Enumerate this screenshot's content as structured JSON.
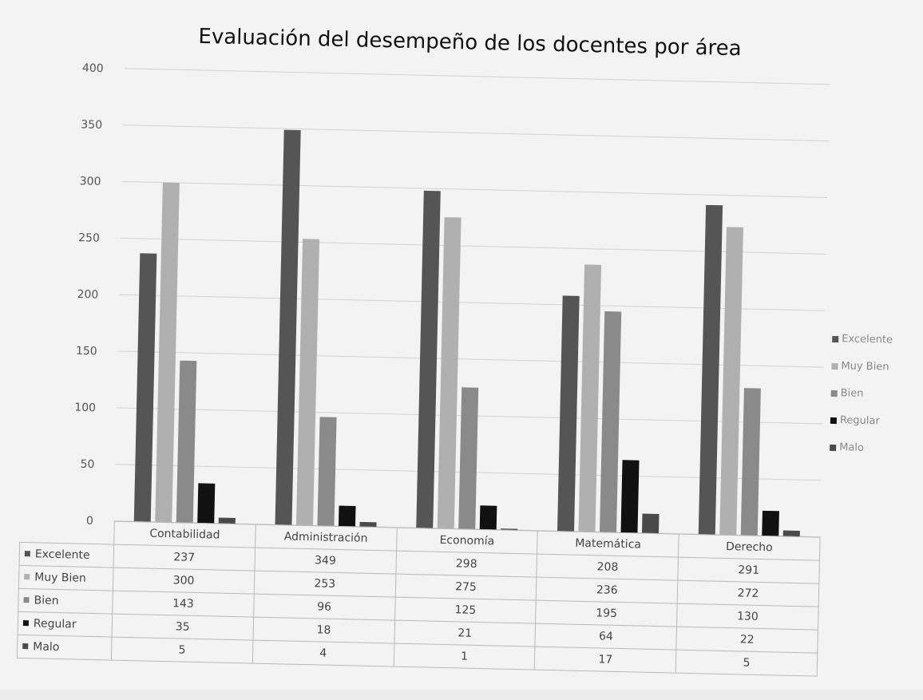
{
  "chart_data": {
    "type": "bar",
    "title": "Evaluación del desempeño de los docentes por área",
    "categories": [
      "Contabilidad",
      "Administración",
      "Economía",
      "Matemática",
      "Derecho"
    ],
    "series": [
      {
        "name": "Excelente",
        "values": [
          237,
          349,
          298,
          208,
          291
        ],
        "color": "#555555"
      },
      {
        "name": "Muy Bien",
        "values": [
          300,
          253,
          275,
          236,
          272
        ],
        "color": "#b0b0b0"
      },
      {
        "name": "Bien",
        "values": [
          143,
          96,
          125,
          195,
          130
        ],
        "color": "#8a8a8a"
      },
      {
        "name": "Regular",
        "values": [
          35,
          18,
          21,
          64,
          22
        ],
        "color": "#111111"
      },
      {
        "name": "Malo",
        "values": [
          5,
          4,
          1,
          17,
          5
        ],
        "color": "#4a4a4a"
      }
    ],
    "ylim": [
      0,
      400
    ],
    "yticks": [
      0,
      50,
      100,
      150,
      200,
      250,
      300,
      350,
      400
    ],
    "grid": true,
    "legend_position": "right",
    "data_table": true
  }
}
